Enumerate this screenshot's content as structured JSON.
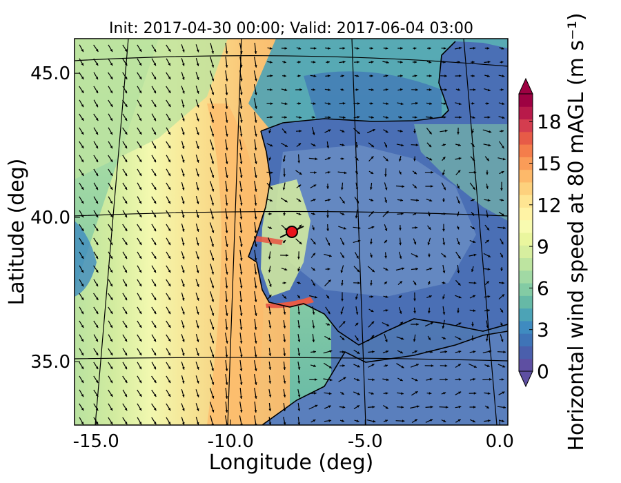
{
  "figure": {
    "title": "Init: 2017-04-30 00:00; Valid: 2017-06-04 03:00",
    "xlabel": "Longitude (deg)",
    "ylabel": "Latitude (deg)",
    "colorbar_label": "Horizontal wind speed at 80 mAGL (m s⁻¹)"
  },
  "map": {
    "xlim": [
      -15.8,
      0.3
    ],
    "ylim": [
      32.8,
      46.2
    ],
    "x_ticks": [
      -15.0,
      -10.0,
      -5.0,
      0.0
    ],
    "x_tick_labels": [
      "-15.0",
      "-10.0",
      "-5.0",
      "0.0"
    ],
    "y_ticks": [
      35.0,
      40.0,
      45.0
    ],
    "y_tick_labels": [
      "35.0",
      "40.0",
      "45.0"
    ],
    "marker": {
      "lon": -7.7,
      "lat": 39.4,
      "color": "#e8141c"
    },
    "wind_field": {
      "description_free": true,
      "ocean_strong_wind_band_lon": [
        -10.5,
        -8.6
      ]
    }
  },
  "colorbar": {
    "min": 0,
    "max": 20,
    "ticks": [
      0,
      3,
      6,
      9,
      12,
      15,
      18
    ],
    "tick_labels": [
      "0",
      "3",
      "6",
      "9",
      "12",
      "15",
      "18"
    ],
    "extend": "both",
    "colors": [
      "#5e4fa2",
      "#4a5fac",
      "#3f74b7",
      "#3f8bc0",
      "#4ca3b6",
      "#66b9a6",
      "#83cba4",
      "#a1d9a4",
      "#bde4a0",
      "#d7ee9f",
      "#eaf69e",
      "#f8fbb0",
      "#fff3a5",
      "#fee592",
      "#fdd17d",
      "#fdb96a",
      "#fa9c58",
      "#f47d4b",
      "#e75b47",
      "#d43d4f",
      "#b81a4a",
      "#9e0142"
    ]
  }
}
